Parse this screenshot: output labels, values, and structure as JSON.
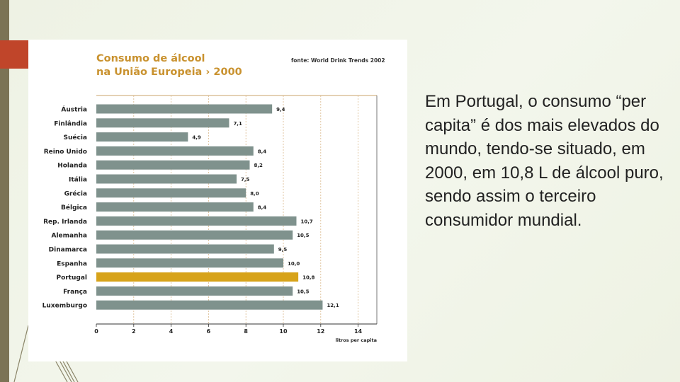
{
  "slide": {
    "body_text": "Em Portugal, o consumo “per capita” é dos mais elevados do mundo, tendo-se situado, em 2000, em 10,8 L de álcool puro, sendo assim o terceiro consumidor mundial."
  },
  "colors": {
    "bar_default": "#7f928d",
    "bar_highlight": "#d7a31a",
    "title": "#c9922f",
    "accent": "#c0452a",
    "stripe": "#7b7355"
  },
  "chart_data": {
    "type": "bar",
    "orientation": "horizontal",
    "title_line1": "Consumo de álcool",
    "title_line2": "na União Europeia › 2000",
    "source": "fonte: World Drink Trends 2002",
    "xlabel": "litros per capita",
    "xlim": [
      0,
      15
    ],
    "xticks": [
      0,
      2,
      4,
      6,
      8,
      10,
      12,
      14
    ],
    "grid": true,
    "highlight": "Portugal",
    "categories": [
      "Áustria",
      "Finlândia",
      "Suécia",
      "Reino Unido",
      "Holanda",
      "Itália",
      "Grécia",
      "Bélgica",
      "Rep. Irlanda",
      "Alemanha",
      "Dinamarca",
      "Espanha",
      "Portugal",
      "França",
      "Luxemburgo"
    ],
    "values": [
      9.4,
      7.1,
      4.9,
      8.4,
      8.2,
      7.5,
      8.0,
      8.4,
      10.7,
      10.5,
      9.5,
      10.0,
      10.8,
      10.5,
      12.1
    ],
    "value_labels": [
      "9,4",
      "7,1",
      "4,9",
      "8,4",
      "8,2",
      "7,5",
      "8,0",
      "8,4",
      "10,7",
      "10,5",
      "9,5",
      "10,0",
      "10,8",
      "10,5",
      "12,1"
    ]
  }
}
